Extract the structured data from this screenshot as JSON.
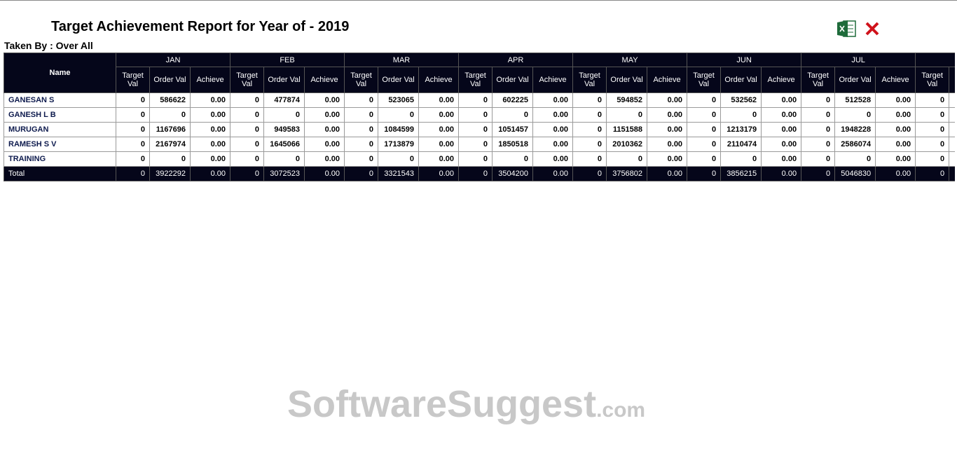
{
  "header": {
    "title": "Target Achievement Report for Year of - 2019",
    "taken_by": "Taken By : Over All"
  },
  "table": {
    "name_header": "Name",
    "months": [
      "JAN",
      "FEB",
      "MAR",
      "APR",
      "MAY",
      "JUN",
      "JUL"
    ],
    "sub_headers": [
      "Target Val",
      "Order Val",
      "Achieve"
    ],
    "rows": [
      {
        "name": "GANESAN S",
        "cells": [
          [
            0,
            586622,
            "0.00"
          ],
          [
            0,
            477874,
            "0.00"
          ],
          [
            0,
            523065,
            "0.00"
          ],
          [
            0,
            602225,
            "0.00"
          ],
          [
            0,
            594852,
            "0.00"
          ],
          [
            0,
            532562,
            "0.00"
          ],
          [
            0,
            512528,
            "0.00"
          ],
          [
            0
          ]
        ]
      },
      {
        "name": "GANESH L B",
        "cells": [
          [
            0,
            0,
            "0.00"
          ],
          [
            0,
            0,
            "0.00"
          ],
          [
            0,
            0,
            "0.00"
          ],
          [
            0,
            0,
            "0.00"
          ],
          [
            0,
            0,
            "0.00"
          ],
          [
            0,
            0,
            "0.00"
          ],
          [
            0,
            0,
            "0.00"
          ],
          [
            0
          ]
        ]
      },
      {
        "name": "MURUGAN",
        "cells": [
          [
            0,
            1167696,
            "0.00"
          ],
          [
            0,
            949583,
            "0.00"
          ],
          [
            0,
            1084599,
            "0.00"
          ],
          [
            0,
            1051457,
            "0.00"
          ],
          [
            0,
            1151588,
            "0.00"
          ],
          [
            0,
            1213179,
            "0.00"
          ],
          [
            0,
            1948228,
            "0.00"
          ],
          [
            0
          ]
        ]
      },
      {
        "name": "RAMESH S V",
        "cells": [
          [
            0,
            2167974,
            "0.00"
          ],
          [
            0,
            1645066,
            "0.00"
          ],
          [
            0,
            1713879,
            "0.00"
          ],
          [
            0,
            1850518,
            "0.00"
          ],
          [
            0,
            2010362,
            "0.00"
          ],
          [
            0,
            2110474,
            "0.00"
          ],
          [
            0,
            2586074,
            "0.00"
          ],
          [
            0
          ]
        ]
      },
      {
        "name": "TRAINING",
        "cells": [
          [
            0,
            0,
            "0.00"
          ],
          [
            0,
            0,
            "0.00"
          ],
          [
            0,
            0,
            "0.00"
          ],
          [
            0,
            0,
            "0.00"
          ],
          [
            0,
            0,
            "0.00"
          ],
          [
            0,
            0,
            "0.00"
          ],
          [
            0,
            0,
            "0.00"
          ],
          [
            0
          ]
        ]
      }
    ],
    "total": {
      "name": "Total",
      "cells": [
        [
          0,
          3922292,
          "0.00"
        ],
        [
          0,
          3072523,
          "0.00"
        ],
        [
          0,
          3321543,
          "0.00"
        ],
        [
          0,
          3504200,
          "0.00"
        ],
        [
          0,
          3756802,
          "0.00"
        ],
        [
          0,
          3856215,
          "0.00"
        ],
        [
          0,
          5046830,
          "0.00"
        ],
        [
          0
        ]
      ]
    }
  },
  "watermark": {
    "main": "SoftwareSuggest",
    "suffix": ".com"
  }
}
